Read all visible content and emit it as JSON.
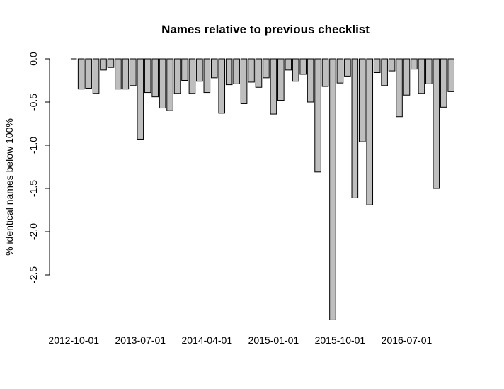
{
  "chart_data": {
    "type": "bar",
    "title": "Names relative to previous checklist",
    "xlabel": "",
    "ylabel": "% identical names below 100%",
    "ylim": [
      -3.0,
      0.0
    ],
    "yticks": [
      0.0,
      -0.5,
      -1.0,
      -1.5,
      -2.0,
      -2.5
    ],
    "ytick_labels": [
      "0.0",
      "-0.5",
      "-1.0",
      "-1.5",
      "-2.0",
      "-2.5"
    ],
    "xtick_labels": [
      {
        "label": "2012-10-01",
        "index": 0
      },
      {
        "label": "2013-07-01",
        "index": 9
      },
      {
        "label": "2014-04-01",
        "index": 18
      },
      {
        "label": "2015-01-01",
        "index": 27
      },
      {
        "label": "2015-10-01",
        "index": 36
      },
      {
        "label": "2016-07-01",
        "index": 45
      }
    ],
    "categories": [
      "2012-10-01",
      "2012-11-01",
      "2012-12-01",
      "2013-01-01",
      "2013-02-01",
      "2013-03-01",
      "2013-04-01",
      "2013-05-01",
      "2013-06-01",
      "2013-07-01",
      "2013-08-01",
      "2013-09-01",
      "2013-10-01",
      "2013-11-01",
      "2013-12-01",
      "2014-01-01",
      "2014-02-01",
      "2014-03-01",
      "2014-04-01",
      "2014-05-01",
      "2014-06-01",
      "2014-07-01",
      "2014-08-01",
      "2014-09-01",
      "2014-10-01",
      "2014-11-01",
      "2014-12-01",
      "2015-01-01",
      "2015-02-01",
      "2015-03-01",
      "2015-04-01",
      "2015-05-01",
      "2015-06-01",
      "2015-07-01",
      "2015-08-01",
      "2015-09-01",
      "2015-10-01",
      "2015-11-01",
      "2015-12-01",
      "2016-01-01",
      "2016-02-01",
      "2016-03-01",
      "2016-04-01",
      "2016-05-01",
      "2016-06-01",
      "2016-07-01",
      "2016-08-01",
      "2016-09-01",
      "2016-10-01",
      "2016-11-01",
      "2016-12-01",
      "2017-01-01"
    ],
    "values": [
      0.0,
      -0.35,
      -0.34,
      -0.4,
      -0.13,
      -0.1,
      -0.35,
      -0.35,
      -0.31,
      -0.93,
      -0.39,
      -0.44,
      -0.57,
      -0.6,
      -0.4,
      -0.25,
      -0.4,
      -0.26,
      -0.39,
      -0.22,
      -0.63,
      -0.3,
      -0.29,
      -0.52,
      -0.27,
      -0.33,
      -0.22,
      -0.64,
      -0.48,
      -0.13,
      -0.26,
      -0.18,
      -0.5,
      -1.31,
      -0.32,
      -3.02,
      -0.28,
      -0.2,
      -1.61,
      -0.96,
      -1.69,
      -0.16,
      -0.31,
      -0.14,
      -0.67,
      -0.42,
      -0.12,
      -0.4,
      -0.29,
      -1.5,
      -0.56,
      -0.38
    ],
    "grid": false,
    "legend": "none"
  }
}
